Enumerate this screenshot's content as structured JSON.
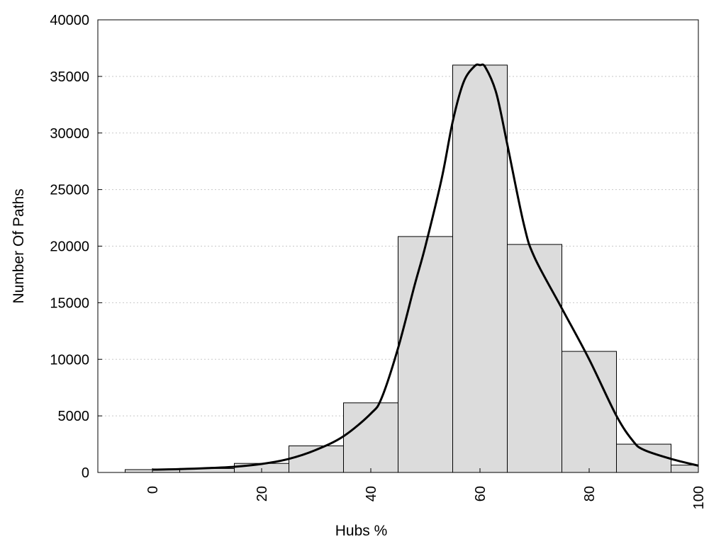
{
  "chart_data": {
    "type": "bar",
    "title": "",
    "xlabel": "Hubs %",
    "ylabel": "Number Of Paths",
    "xlim": [
      -10,
      100
    ],
    "ylim": [
      0,
      40000
    ],
    "x_ticks": [
      0,
      20,
      40,
      60,
      80,
      100
    ],
    "y_ticks": [
      0,
      5000,
      10000,
      15000,
      20000,
      25000,
      30000,
      35000,
      40000
    ],
    "grid": "horizontal dotted",
    "bar_color": "#dcdcdc",
    "line_color": "#000000",
    "series": [
      {
        "type": "bar",
        "bins": [
          {
            "x0": -5,
            "x1": 5,
            "value": 250
          },
          {
            "x0": 5,
            "x1": 15,
            "value": 350
          },
          {
            "x0": 15,
            "x1": 25,
            "value": 800
          },
          {
            "x0": 25,
            "x1": 35,
            "value": 2350
          },
          {
            "x0": 35,
            "x1": 45,
            "value": 6150
          },
          {
            "x0": 45,
            "x1": 55,
            "value": 20850
          },
          {
            "x0": 55,
            "x1": 65,
            "value": 36000
          },
          {
            "x0": 65,
            "x1": 75,
            "value": 20150
          },
          {
            "x0": 75,
            "x1": 85,
            "value": 10700
          },
          {
            "x0": 85,
            "x1": 95,
            "value": 2500
          },
          {
            "x0": 95,
            "x1": 100,
            "value": 650
          }
        ]
      },
      {
        "type": "line",
        "smooth": true,
        "x": [
          0,
          5,
          10,
          15,
          20,
          25,
          30,
          35,
          40,
          42,
          45,
          48,
          50,
          53,
          55,
          57,
          59,
          60,
          61,
          63,
          65,
          68,
          70,
          75,
          80,
          85,
          88,
          90,
          95,
          100
        ],
        "y": [
          250,
          300,
          380,
          500,
          750,
          1200,
          2000,
          3200,
          5200,
          6600,
          11000,
          16500,
          20000,
          26000,
          31000,
          34500,
          35900,
          36000,
          35800,
          33500,
          29000,
          22000,
          19000,
          14500,
          10000,
          5000,
          2800,
          2000,
          1200,
          600
        ]
      }
    ]
  }
}
